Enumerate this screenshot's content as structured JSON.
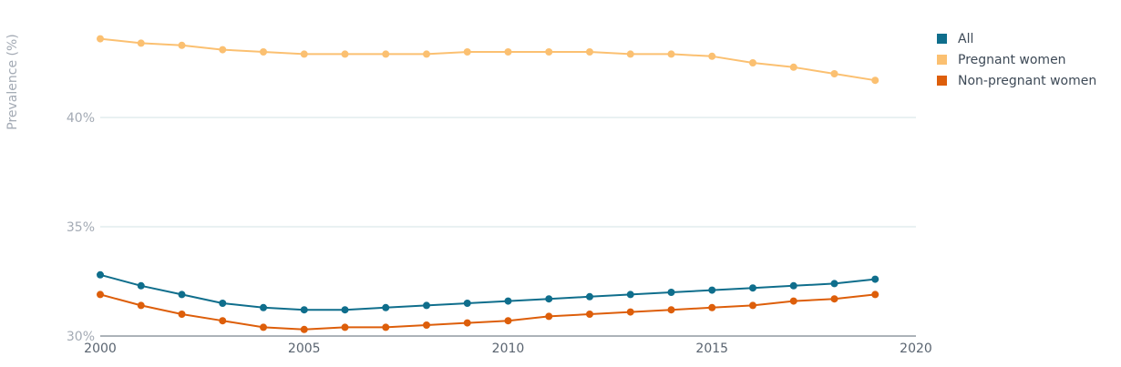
{
  "chart_data": {
    "type": "line",
    "ylabel": "Prevalence (%)",
    "xlabel": "",
    "xlim": [
      2000,
      2020
    ],
    "ylim": [
      30,
      44
    ],
    "x_ticks": [
      "2000",
      "2005",
      "2010",
      "2015",
      "2020"
    ],
    "y_ticks": [
      "30%",
      "35%",
      "40%"
    ],
    "grid": "horizontal",
    "legend_position": "top-right",
    "x": [
      2000,
      2001,
      2002,
      2003,
      2004,
      2005,
      2006,
      2007,
      2008,
      2009,
      2010,
      2011,
      2012,
      2013,
      2014,
      2015,
      2016,
      2017,
      2018,
      2019
    ],
    "series": [
      {
        "name": "All",
        "color": "#0f6e8c",
        "values": [
          32.8,
          32.3,
          31.9,
          31.5,
          31.3,
          31.2,
          31.2,
          31.3,
          31.4,
          31.5,
          31.6,
          31.7,
          31.8,
          31.9,
          32.0,
          32.1,
          32.2,
          32.3,
          32.4,
          32.6
        ]
      },
      {
        "name": "Pregnant women",
        "color": "#fbc071",
        "values": [
          43.6,
          43.4,
          43.3,
          43.1,
          43.0,
          42.9,
          42.9,
          42.9,
          42.9,
          43.0,
          43.0,
          43.0,
          43.0,
          42.9,
          42.9,
          42.8,
          42.5,
          42.3,
          42.0,
          41.7
        ]
      },
      {
        "name": "Non-pregnant women",
        "color": "#dd5e0a",
        "values": [
          31.9,
          31.4,
          31.0,
          30.7,
          30.4,
          30.3,
          30.4,
          30.4,
          30.5,
          30.6,
          30.7,
          30.9,
          31.0,
          31.1,
          31.2,
          31.3,
          31.4,
          31.6,
          31.7,
          31.9
        ]
      }
    ]
  }
}
